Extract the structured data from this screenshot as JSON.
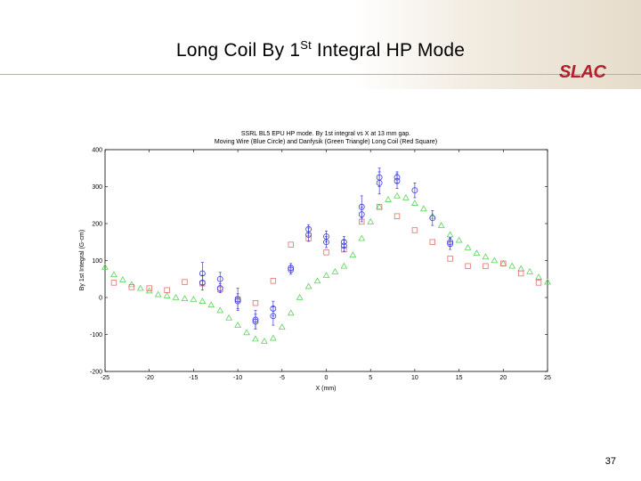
{
  "slide": {
    "title_main": "Long Coil By 1",
    "title_sup": "St",
    "title_rest": " Integral HP Mode",
    "logo": "SLAC",
    "page_number": "37"
  },
  "chart_data": {
    "type": "scatter",
    "title": "SSRL BL5 EPU HP mode.  By 1st integral vs X at 13 mm gap.",
    "subtitle": "Moving Wire (Blue Circle) and Danfysik (Green Triangle) Long Coil (Red Square)",
    "xlabel": "X (mm)",
    "ylabel": "By 1st Integral (G-cm)",
    "xlim": [
      -25,
      25
    ],
    "ylim": [
      -200,
      400
    ],
    "xticks": [
      -25,
      -20,
      -15,
      -10,
      -5,
      0,
      5,
      10,
      15,
      20,
      25
    ],
    "yticks": [
      -200,
      -100,
      0,
      100,
      200,
      300,
      400
    ],
    "grid": false,
    "legend": "none",
    "colors": {
      "moving_wire": "#3a3ad8",
      "danfysik": "#5cd35c",
      "long_coil": "#e07070"
    },
    "series": [
      {
        "marker": "circle",
        "points": [
          {
            "x": -14,
            "y": 40,
            "err": 20
          },
          {
            "x": -14,
            "y": 65,
            "err": 30
          },
          {
            "x": -12,
            "y": 25,
            "err": 12
          },
          {
            "x": -12,
            "y": 50,
            "err": 18
          },
          {
            "x": -10,
            "y": -10,
            "err": 20
          },
          {
            "x": -10,
            "y": -5,
            "err": 30
          },
          {
            "x": -8,
            "y": -60,
            "err": 25
          },
          {
            "x": -8,
            "y": -65,
            "err": 20
          },
          {
            "x": -6,
            "y": -50,
            "err": 25
          },
          {
            "x": -6,
            "y": -30,
            "err": 20
          },
          {
            "x": -4,
            "y": 75,
            "err": 12
          },
          {
            "x": -4,
            "y": 80,
            "err": 12
          },
          {
            "x": -2,
            "y": 170,
            "err": 18
          },
          {
            "x": -2,
            "y": 185,
            "err": 12
          },
          {
            "x": 0,
            "y": 150,
            "err": 15
          },
          {
            "x": 0,
            "y": 165,
            "err": 15
          },
          {
            "x": 2,
            "y": 140,
            "err": 15
          },
          {
            "x": 2,
            "y": 150,
            "err": 15
          },
          {
            "x": 4,
            "y": 225,
            "err": 20
          },
          {
            "x": 4,
            "y": 245,
            "err": 30
          },
          {
            "x": 6,
            "y": 310,
            "err": 30
          },
          {
            "x": 6,
            "y": 325,
            "err": 25
          },
          {
            "x": 8,
            "y": 315,
            "err": 20
          },
          {
            "x": 8,
            "y": 325,
            "err": 15
          },
          {
            "x": 10,
            "y": 290,
            "err": 20
          },
          {
            "x": 12,
            "y": 215,
            "err": 20
          },
          {
            "x": 14,
            "y": 145,
            "err": 15
          },
          {
            "x": 14,
            "y": 150,
            "err": 12
          }
        ]
      },
      {
        "marker": "triangle",
        "points": [
          {
            "x": -25,
            "y": 82
          },
          {
            "x": -24,
            "y": 62
          },
          {
            "x": -23,
            "y": 48
          },
          {
            "x": -22,
            "y": 35
          },
          {
            "x": -21,
            "y": 25
          },
          {
            "x": -20,
            "y": 18
          },
          {
            "x": -19,
            "y": 8
          },
          {
            "x": -18,
            "y": 5
          },
          {
            "x": -17,
            "y": 0
          },
          {
            "x": -16,
            "y": -3
          },
          {
            "x": -15,
            "y": -5
          },
          {
            "x": -14,
            "y": -10
          },
          {
            "x": -13,
            "y": -20
          },
          {
            "x": -12,
            "y": -35
          },
          {
            "x": -11,
            "y": -55
          },
          {
            "x": -10,
            "y": -75
          },
          {
            "x": -9,
            "y": -95
          },
          {
            "x": -8,
            "y": -112
          },
          {
            "x": -7,
            "y": -118
          },
          {
            "x": -6,
            "y": -110
          },
          {
            "x": -5,
            "y": -80
          },
          {
            "x": -4,
            "y": -42
          },
          {
            "x": -3,
            "y": 0
          },
          {
            "x": -2,
            "y": 30
          },
          {
            "x": -1,
            "y": 45
          },
          {
            "x": 0,
            "y": 60
          },
          {
            "x": 1,
            "y": 70
          },
          {
            "x": 2,
            "y": 85
          },
          {
            "x": 3,
            "y": 115
          },
          {
            "x": 4,
            "y": 160
          },
          {
            "x": 5,
            "y": 205
          },
          {
            "x": 6,
            "y": 245
          },
          {
            "x": 7,
            "y": 265
          },
          {
            "x": 8,
            "y": 275
          },
          {
            "x": 9,
            "y": 270
          },
          {
            "x": 10,
            "y": 255
          },
          {
            "x": 11,
            "y": 240
          },
          {
            "x": 12,
            "y": 220
          },
          {
            "x": 13,
            "y": 195
          },
          {
            "x": 14,
            "y": 170
          },
          {
            "x": 15,
            "y": 155
          },
          {
            "x": 16,
            "y": 135
          },
          {
            "x": 17,
            "y": 120
          },
          {
            "x": 18,
            "y": 110
          },
          {
            "x": 19,
            "y": 100
          },
          {
            "x": 20,
            "y": 92
          },
          {
            "x": 21,
            "y": 85
          },
          {
            "x": 22,
            "y": 78
          },
          {
            "x": 23,
            "y": 70
          },
          {
            "x": 24,
            "y": 55
          },
          {
            "x": 25,
            "y": 42
          }
        ]
      },
      {
        "marker": "square",
        "points": [
          {
            "x": -24,
            "y": 40
          },
          {
            "x": -22,
            "y": 28
          },
          {
            "x": -20,
            "y": 25
          },
          {
            "x": -18,
            "y": 20
          },
          {
            "x": -16,
            "y": 42
          },
          {
            "x": -14,
            "y": 38
          },
          {
            "x": -12,
            "y": 22
          },
          {
            "x": -10,
            "y": -5
          },
          {
            "x": -8,
            "y": -15
          },
          {
            "x": -6,
            "y": 45
          },
          {
            "x": -4,
            "y": 143
          },
          {
            "x": -2,
            "y": 160
          },
          {
            "x": 0,
            "y": 122
          },
          {
            "x": 2,
            "y": 130
          },
          {
            "x": 4,
            "y": 205
          },
          {
            "x": 6,
            "y": 245
          },
          {
            "x": 8,
            "y": 220
          },
          {
            "x": 10,
            "y": 182
          },
          {
            "x": 12,
            "y": 150
          },
          {
            "x": 14,
            "y": 105
          },
          {
            "x": 16,
            "y": 85
          },
          {
            "x": 18,
            "y": 85
          },
          {
            "x": 20,
            "y": 92
          },
          {
            "x": 22,
            "y": 65
          },
          {
            "x": 24,
            "y": 40
          }
        ]
      }
    ]
  }
}
